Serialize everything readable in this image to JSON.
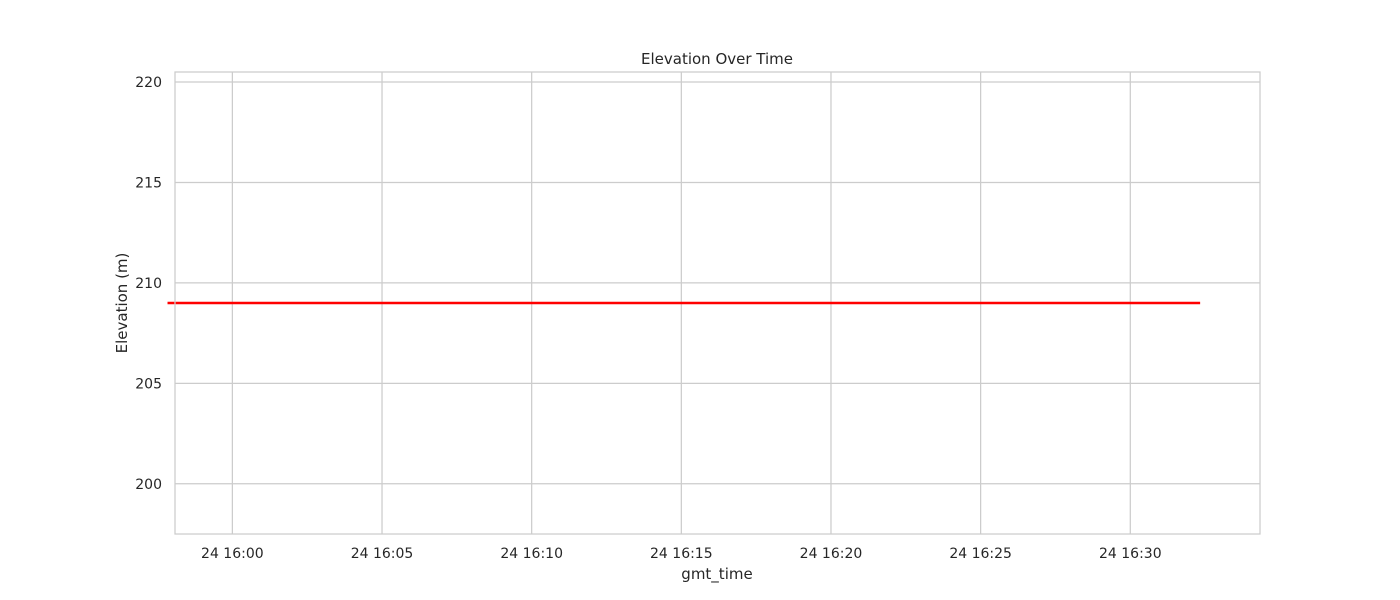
{
  "chart_data": {
    "type": "line",
    "title": "Elevation Over Time",
    "xlabel": "gmt_time",
    "ylabel": "Elevation (m)",
    "x_tick_labels": [
      "24 16:00",
      "24 16:05",
      "24 16:10",
      "24 16:15",
      "24 16:20",
      "24 16:25",
      "24 16:30"
    ],
    "x_tick_values": [
      "16:00",
      "16:05",
      "16:10",
      "16:15",
      "16:20",
      "16:25",
      "16:30"
    ],
    "xlim": [
      "15:58:05",
      "16:34:20"
    ],
    "yticks": [
      200,
      205,
      210,
      215,
      220
    ],
    "ylim": [
      197.5,
      220.5
    ],
    "grid": true,
    "series": [
      {
        "color": "#ff0000",
        "x": [
          "15:57:50",
          "16:32:20"
        ],
        "y": [
          209,
          209
        ]
      }
    ]
  }
}
